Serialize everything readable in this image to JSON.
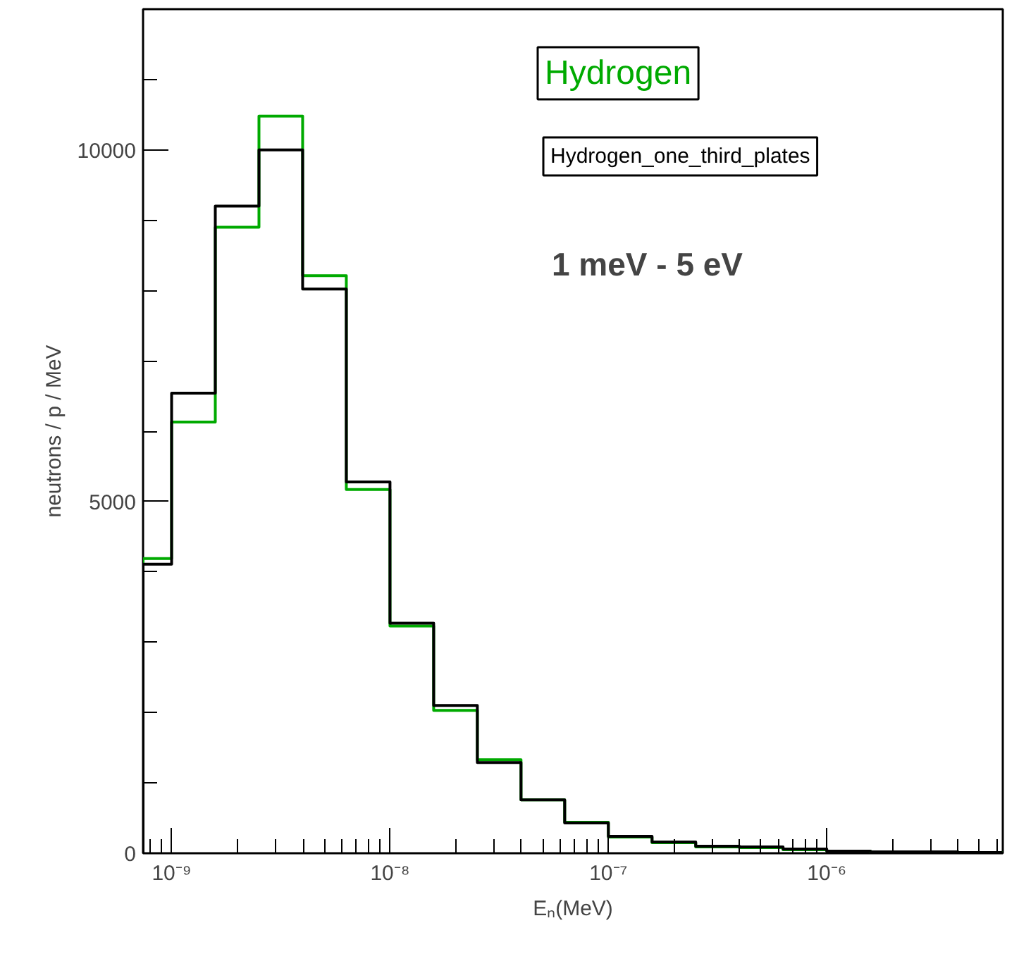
{
  "chart_data": {
    "type": "histogram",
    "xlabel": "Eₙ(MeV)",
    "ylabel": "neutrons / p / MeV",
    "bins": [
      7.4e-10,
      1e-09,
      1.585e-09,
      2.512e-09,
      3.981e-09,
      6.31e-09,
      1e-08,
      1.585e-08,
      2.512e-08,
      3.981e-08,
      6.31e-08,
      1e-07,
      1.585e-07,
      2.512e-07,
      3.981e-07,
      6.31e-07,
      1e-06,
      1.585e-06,
      2.512e-06,
      3.981e-06,
      6.31e-06
    ],
    "series": [
      {
        "name": "Hydrogen",
        "color": "#00aa00",
        "values": [
          4190,
          6130,
          8900,
          10480,
          8210,
          5170,
          3230,
          2030,
          1330,
          760,
          440,
          230,
          150,
          90,
          80,
          50,
          30,
          20,
          20,
          10
        ]
      },
      {
        "name": "Hydrogen_one_third_plates",
        "color": "#000000",
        "values": [
          4110,
          6540,
          9200,
          10000,
          8020,
          5280,
          3270,
          2100,
          1290,
          760,
          430,
          240,
          160,
          100,
          90,
          60,
          30,
          20,
          20,
          10
        ]
      }
    ],
    "xlim": [
      7.4e-10,
      6.4e-06
    ],
    "ylim": [
      0,
      12000
    ],
    "xticks": [
      {
        "value": 1e-09,
        "label": "10⁻⁹"
      },
      {
        "value": 1e-08,
        "label": "10⁻⁸"
      },
      {
        "value": 1e-07,
        "label": "10⁻⁷"
      },
      {
        "value": 1e-06,
        "label": "10⁻⁶"
      }
    ],
    "yticks": [
      0,
      5000,
      10000
    ],
    "log": "x",
    "grid": false,
    "legend": "top right",
    "annotations": [
      "1 meV - 5 eV"
    ]
  }
}
